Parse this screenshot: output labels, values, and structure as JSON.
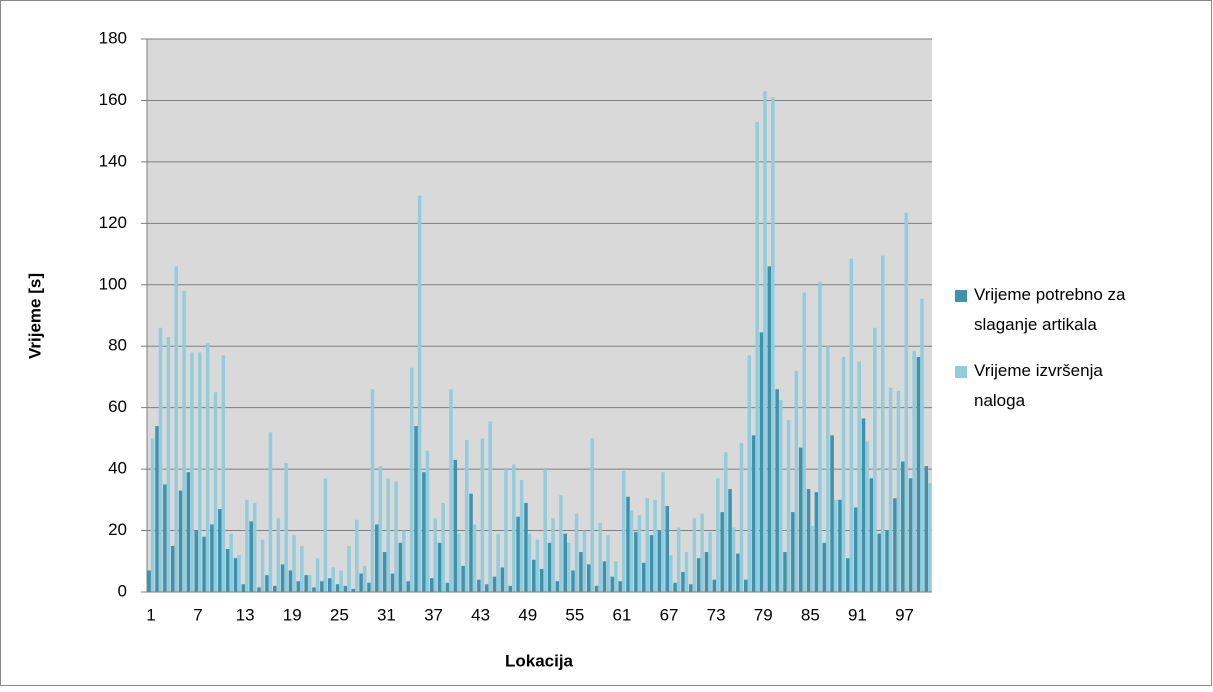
{
  "chart_data": {
    "type": "bar",
    "x_label": "Lokacija",
    "y_label": "Vrijeme [s]",
    "categories": [
      "1",
      null,
      null,
      null,
      null,
      null,
      "7",
      null,
      null,
      null,
      null,
      null,
      "13",
      null,
      null,
      null,
      null,
      null,
      "19",
      null,
      null,
      null,
      null,
      null,
      "25",
      null,
      null,
      null,
      null,
      null,
      "31",
      null,
      null,
      null,
      null,
      null,
      "37",
      null,
      null,
      null,
      null,
      null,
      "43",
      null,
      null,
      null,
      null,
      null,
      "49",
      null,
      null,
      null,
      null,
      null,
      "55",
      null,
      null,
      null,
      null,
      null,
      "61",
      null,
      null,
      null,
      null,
      null,
      "67",
      null,
      null,
      null,
      null,
      null,
      "73",
      null,
      null,
      null,
      null,
      null,
      "79",
      null,
      null,
      null,
      null,
      null,
      "85",
      null,
      null,
      null,
      null,
      null,
      "91",
      null,
      null,
      null,
      null,
      null,
      "97",
      null,
      null,
      null
    ],
    "series": [
      {
        "name": "Vrijeme potrebno za slaganje artikala",
        "color": "#3e92ab",
        "values": [
          7,
          54,
          35,
          15,
          33,
          39,
          20,
          18,
          22,
          27,
          14,
          11,
          2.5,
          23,
          1.5,
          5.5,
          2,
          9,
          7,
          3.5,
          5.5,
          1.5,
          3.5,
          4.5,
          2.5,
          2,
          1,
          6,
          3,
          22,
          13,
          6,
          16,
          3.5,
          54,
          39,
          4.5,
          16,
          3,
          43,
          8.5,
          32,
          4,
          2.5,
          5,
          8,
          2,
          24.5,
          29,
          10.5,
          7.5,
          16,
          3.5,
          19,
          7,
          13,
          9,
          2,
          10,
          5,
          3.5,
          31,
          19.5,
          9.5,
          18.5,
          20,
          28,
          3,
          6.5,
          2.5,
          11,
          13,
          4,
          26,
          33.5,
          12.5,
          4,
          51,
          84.5,
          106,
          66,
          13,
          26,
          47,
          33.5,
          32.5,
          16,
          51,
          30,
          11,
          27.5,
          56.5,
          37,
          19,
          20,
          30.5,
          42.5,
          37,
          76.5,
          41
        ]
      },
      {
        "name": "Vrijeme izvršenja naloga",
        "color": "#93cddd",
        "values": [
          50,
          86,
          83,
          106,
          98,
          78,
          78,
          81,
          65,
          77,
          19,
          12,
          30,
          29,
          17,
          52,
          24,
          42,
          18.5,
          15,
          5.5,
          11,
          37,
          8,
          7,
          15,
          23.5,
          8.5,
          66,
          41,
          37,
          36,
          20,
          73,
          129,
          46,
          24,
          29,
          66,
          19,
          49.5,
          22,
          50,
          55.5,
          19,
          40,
          41.5,
          36.5,
          19,
          17,
          40,
          24,
          31.5,
          16,
          25.5,
          20,
          50,
          22.5,
          18.5,
          10,
          39.5,
          26.5,
          25,
          30.5,
          30,
          39,
          12,
          21,
          13,
          24,
          25.5,
          19.5,
          37,
          45.5,
          21,
          48.5,
          77,
          153,
          163,
          161,
          62.5,
          56,
          72,
          97.5,
          21.5,
          101,
          80,
          30,
          76.5,
          108.5,
          75,
          49,
          86,
          109.5,
          66.5,
          65.5,
          123.5,
          78.5,
          95.5,
          35.5
        ]
      }
    ],
    "ylim": [
      0,
      180
    ],
    "yticks": [
      0,
      20,
      40,
      60,
      80,
      100,
      120,
      140,
      160,
      180
    ],
    "grid": true,
    "legend": "right"
  }
}
